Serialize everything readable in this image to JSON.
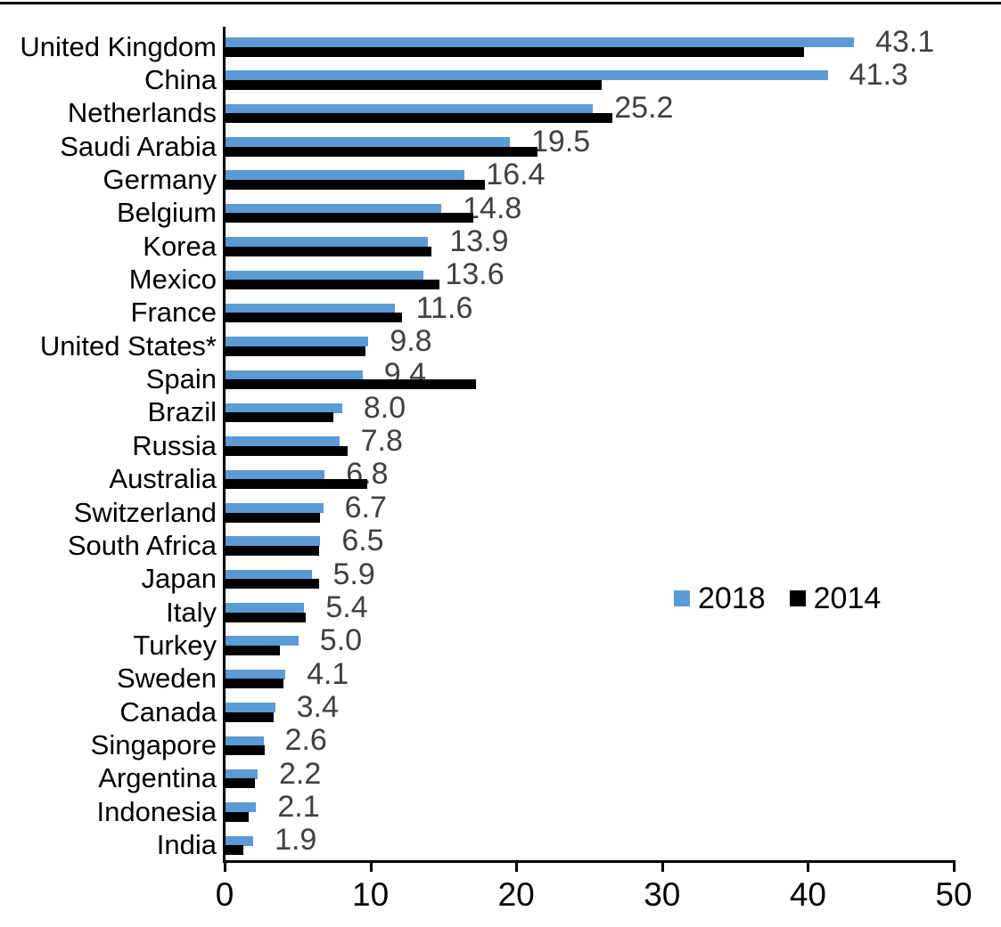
{
  "chart_data": {
    "type": "bar",
    "orientation": "horizontal",
    "title": "",
    "xlabel": "",
    "ylabel": "",
    "xlim": [
      0,
      50
    ],
    "x_ticks": [
      0,
      10,
      20,
      30,
      40,
      50
    ],
    "grid": false,
    "legend_position": "middle-right",
    "categories": [
      "United Kingdom",
      "China",
      "Netherlands",
      "Saudi Arabia",
      "Germany",
      "Belgium",
      "Korea",
      "Mexico",
      "France",
      "United States*",
      "Spain",
      "Brazil",
      "Russia",
      "Australia",
      "Switzerland",
      "South Africa",
      "Japan",
      "Italy",
      "Turkey",
      "Sweden",
      "Canada",
      "Singapore",
      "Argentina",
      "Indonesia",
      "India"
    ],
    "series": [
      {
        "name": "2018",
        "color": "#5B9BD5",
        "values": [
          43.1,
          41.3,
          25.2,
          19.5,
          16.4,
          14.8,
          13.9,
          13.6,
          11.6,
          9.8,
          9.4,
          8.0,
          7.8,
          6.8,
          6.7,
          6.5,
          5.9,
          5.4,
          5.0,
          4.1,
          3.4,
          2.6,
          2.2,
          2.1,
          1.9
        ]
      },
      {
        "name": "2014",
        "color": "#000000",
        "values": [
          39.7,
          25.8,
          26.5,
          21.4,
          17.8,
          17.0,
          14.1,
          14.7,
          12.1,
          9.6,
          17.2,
          7.4,
          8.4,
          9.7,
          6.5,
          6.4,
          6.4,
          5.5,
          3.7,
          4.0,
          3.3,
          2.7,
          2.0,
          1.6,
          1.2
        ]
      }
    ],
    "data_labels": {
      "series": "2018",
      "values": [
        "43.1",
        "41.3",
        "25.2",
        "19.5",
        "16.4",
        "14.8",
        "13.9",
        "13.6",
        "11.6",
        "9.8",
        "9.4",
        "8.0",
        "7.8",
        "6.8",
        "6.7",
        "6.5",
        "5.9",
        "5.4",
        "5.0",
        "4.1",
        "3.4",
        "2.6",
        "2.2",
        "2.1",
        "1.9"
      ]
    }
  },
  "legend": {
    "items": [
      {
        "label": "2018",
        "color": "#5B9BD5"
      },
      {
        "label": "2014",
        "color": "#000000"
      }
    ]
  },
  "colors": {
    "series_2018": "#5B9BD5",
    "series_2014": "#000000",
    "value_label": "#404040",
    "axis": "#000000",
    "background": "#ffffff"
  }
}
